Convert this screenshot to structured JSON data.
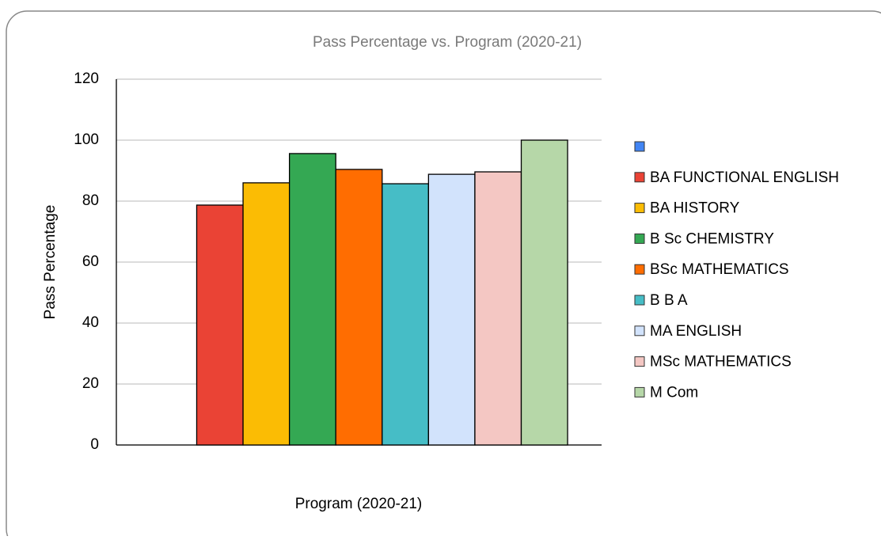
{
  "chart_data": {
    "type": "bar",
    "title": "Pass Percentage vs. Program (2020-21)",
    "x_label": "Program (2020-21)",
    "y_label": "Pass Percentage",
    "categories": [
      null
    ],
    "series": [
      {
        "name": null,
        "color": "#4285f4",
        "values": [
          null
        ]
      },
      {
        "name": "BA FUNCTIONAL ENGLISH",
        "color": "#ea4335",
        "values": [
          78.7
        ]
      },
      {
        "name": "BA HISTORY",
        "color": "#fbbc04",
        "values": [
          86
        ]
      },
      {
        "name": "B Sc  CHEMISTRY",
        "color": "#34a853",
        "values": [
          95.6
        ]
      },
      {
        "name": "BSc MATHEMATICS",
        "color": "#ff6d01",
        "values": [
          90.4
        ]
      },
      {
        "name": "B B A",
        "color": "#46bdc6",
        "values": [
          85.7
        ]
      },
      {
        "name": "MA ENGLISH",
        "color": "#d2e3fc",
        "values": [
          88.8
        ]
      },
      {
        "name": "MSc MATHEMATICS",
        "color": "#f4c7c3",
        "values": [
          89.6
        ]
      },
      {
        "name": "M Com",
        "color": "#b6d7a8",
        "values": [
          100
        ]
      }
    ],
    "ylim": [
      0,
      120
    ],
    "yticks": [
      0,
      20,
      40,
      60,
      80,
      100,
      120
    ],
    "grid": true,
    "legend": "right"
  }
}
